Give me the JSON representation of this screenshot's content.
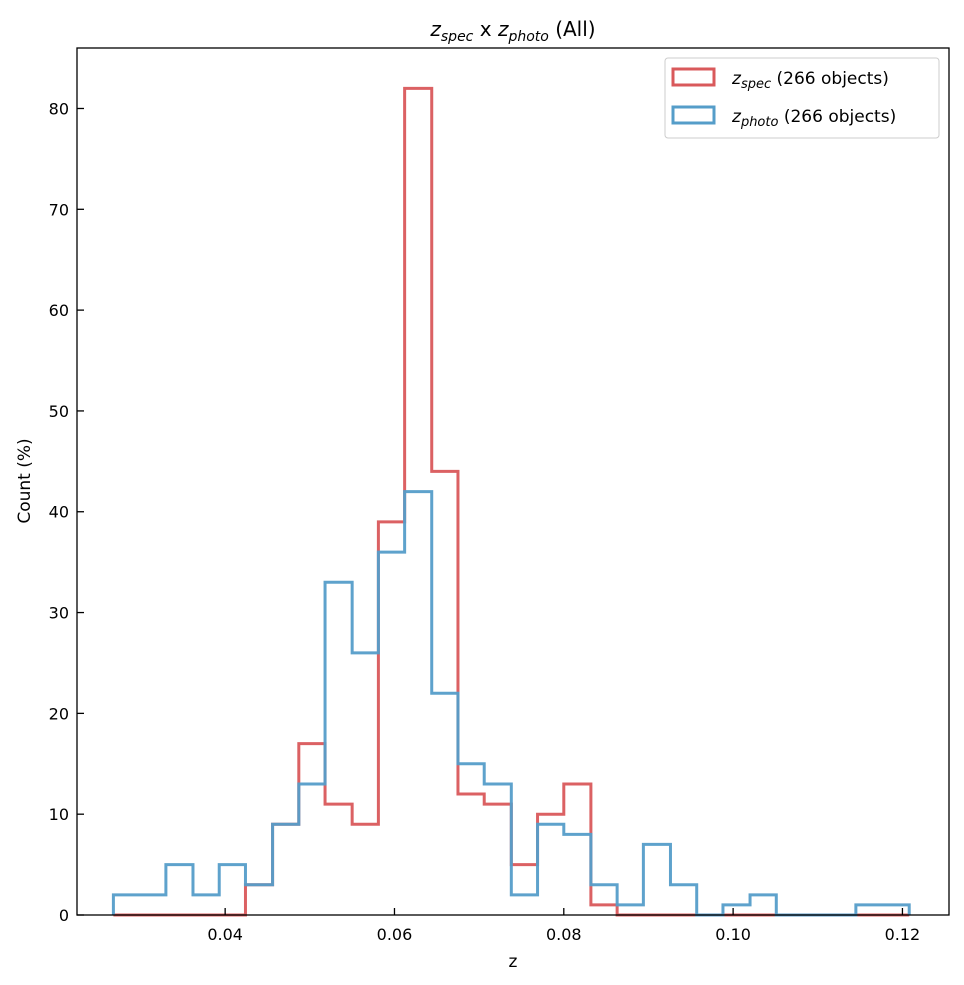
{
  "chart_data": {
    "type": "histogram",
    "title": {
      "base1": "z",
      "sub1": "spec",
      "sep": " x ",
      "base2": "z",
      "sub2": "photo",
      "suffix": " (All)"
    },
    "xlabel": "z",
    "ylabel": "Count (%)",
    "xlim": [
      0.0225,
      0.1255
    ],
    "ylim": [
      0,
      86
    ],
    "xticks": [
      0.04,
      0.06,
      0.08,
      0.1,
      0.12
    ],
    "xtick_labels": [
      "0.04",
      "0.06",
      "0.08",
      "0.10",
      "0.12"
    ],
    "yticks": [
      0,
      10,
      20,
      30,
      40,
      50,
      60,
      70,
      80
    ],
    "ytick_labels": [
      "0",
      "10",
      "20",
      "30",
      "40",
      "50",
      "60",
      "70",
      "80"
    ],
    "bin_edges": [
      0.0268,
      0.0299,
      0.033,
      0.0362,
      0.0393,
      0.0424,
      0.0456,
      0.0487,
      0.0518,
      0.055,
      0.0581,
      0.0612,
      0.0644,
      0.0675,
      0.0706,
      0.0738,
      0.0769,
      0.08,
      0.0832,
      0.0863,
      0.0894,
      0.0926,
      0.0957,
      0.0988,
      0.102,
      0.1051,
      0.1082,
      0.1114,
      0.1145,
      0.1176,
      0.1208
    ],
    "series": [
      {
        "base": "z",
        "sub": "spec",
        "legend_suffix": " (266 objects)",
        "color": "#d9595b",
        "counts": [
          0,
          0,
          0,
          0,
          0,
          3,
          9,
          17,
          11,
          9,
          39,
          82,
          44,
          12,
          11,
          5,
          10,
          13,
          1,
          0,
          0,
          0,
          0,
          0,
          0,
          0,
          0,
          0,
          0,
          0
        ]
      },
      {
        "base": "z",
        "sub": "photo",
        "legend_suffix": " (266 objects)",
        "color": "#559dc9",
        "counts": [
          2,
          2,
          5,
          2,
          5,
          3,
          9,
          13,
          33,
          26,
          36,
          42,
          22,
          15,
          13,
          2,
          9,
          8,
          3,
          1,
          7,
          3,
          0,
          1,
          2,
          0,
          0,
          0,
          1,
          1
        ]
      }
    ],
    "legend_position": "upper-right",
    "grid": false
  }
}
